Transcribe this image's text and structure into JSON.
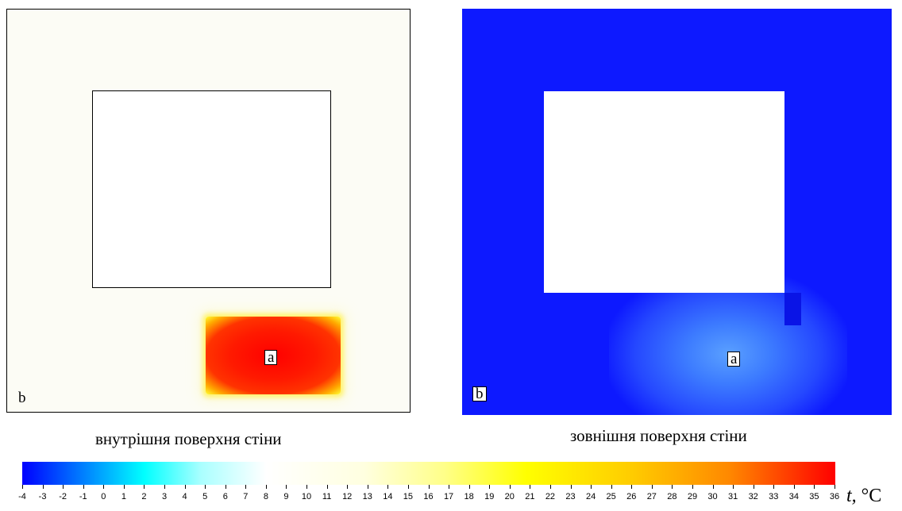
{
  "left_panel": {
    "label_a": "a",
    "label_b": "b",
    "caption": "внутрішня поверхня стіни"
  },
  "right_panel": {
    "label_a": "a",
    "label_b": "b",
    "caption": "зовнішня поверхня стіни"
  },
  "colors": {
    "wall_inner": "#fcfcf5",
    "wall_outer": "#0d19ff",
    "hot_zone": "#ff1a00"
  },
  "color_scale": {
    "min": -4,
    "max": 36,
    "ticks": [
      "-4",
      "-3",
      "-2",
      "-1",
      "0",
      "1",
      "2",
      "3",
      "4",
      "5",
      "6",
      "7",
      "8",
      "9",
      "10",
      "11",
      "12",
      "13",
      "14",
      "15",
      "16",
      "17",
      "18",
      "19",
      "20",
      "21",
      "22",
      "23",
      "24",
      "25",
      "26",
      "27",
      "28",
      "29",
      "30",
      "31",
      "32",
      "33",
      "34",
      "35",
      "36"
    ],
    "unit_symbol": "t,",
    "unit": "°C"
  }
}
